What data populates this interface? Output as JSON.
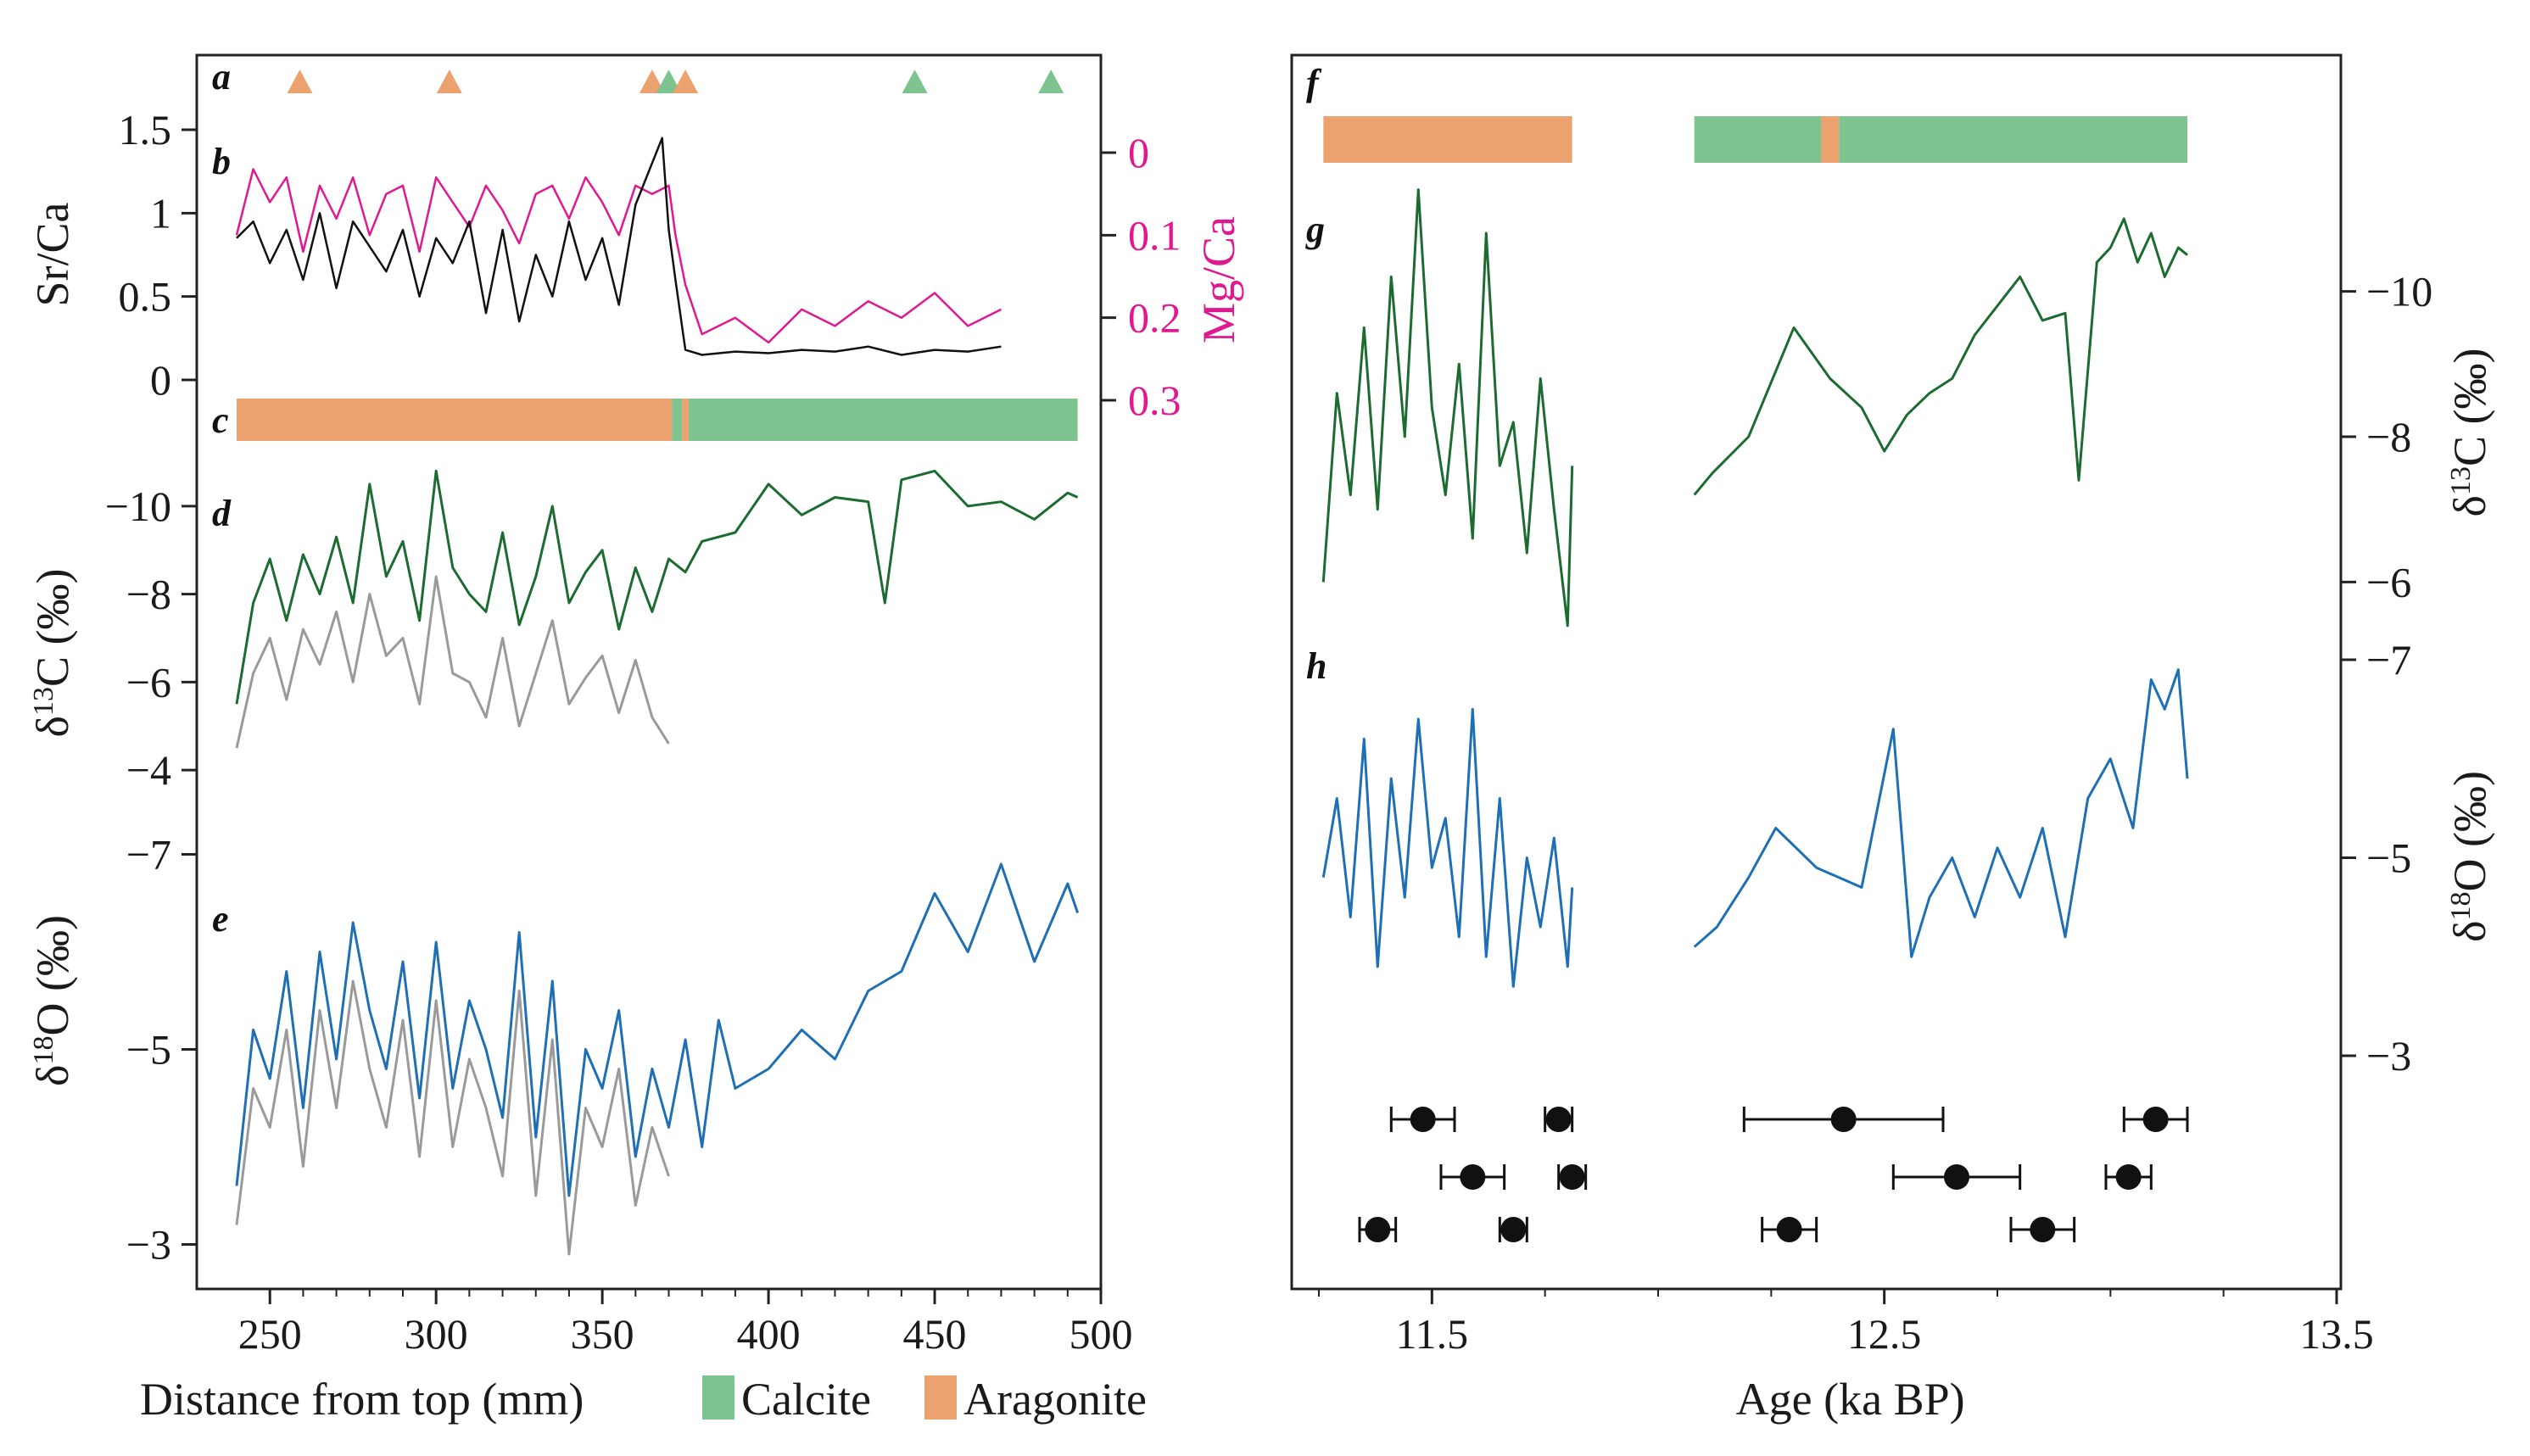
{
  "chart_data": [
    {
      "panel": "left",
      "type": "line",
      "xlabel": "Distance from top (mm)",
      "xlim": [
        228,
        500
      ],
      "xticks": [
        250,
        300,
        350,
        400,
        450,
        500
      ],
      "legend": {
        "placement": "bottom",
        "items": [
          {
            "label": "Calcite",
            "color": "#7dc491"
          },
          {
            "label": "Aragonite",
            "color": "#eba26f"
          }
        ]
      },
      "panel_labels": [
        "a",
        "b",
        "c",
        "d",
        "e"
      ],
      "a_markers": [
        {
          "x": 259,
          "mineral": "aragonite"
        },
        {
          "x": 304,
          "mineral": "aragonite"
        },
        {
          "x": 365,
          "mineral": "aragonite"
        },
        {
          "x": 370,
          "mineral": "calcite"
        },
        {
          "x": 375,
          "mineral": "aragonite"
        },
        {
          "x": 444,
          "mineral": "calcite"
        },
        {
          "x": 485,
          "mineral": "calcite"
        }
      ],
      "sr_ca": {
        "ylabel": "Sr/Ca",
        "ylim": [
          0,
          1.5
        ],
        "yticks": [
          0,
          0.5,
          1.0,
          1.5
        ],
        "color": "#111111",
        "x": [
          240,
          245,
          250,
          255,
          260,
          265,
          270,
          275,
          280,
          285,
          290,
          295,
          300,
          305,
          310,
          315,
          320,
          325,
          330,
          335,
          340,
          345,
          350,
          355,
          360,
          365,
          368,
          370,
          372,
          375,
          380,
          390,
          400,
          410,
          420,
          430,
          440,
          450,
          460,
          470
        ],
        "values": [
          0.85,
          0.95,
          0.7,
          0.9,
          0.6,
          1.0,
          0.55,
          0.95,
          0.8,
          0.65,
          0.9,
          0.5,
          0.85,
          0.7,
          0.95,
          0.4,
          0.9,
          0.35,
          0.75,
          0.5,
          0.95,
          0.6,
          0.85,
          0.45,
          1.05,
          1.3,
          1.45,
          0.9,
          0.6,
          0.18,
          0.15,
          0.17,
          0.16,
          0.18,
          0.17,
          0.2,
          0.15,
          0.18,
          0.17,
          0.2
        ]
      },
      "mg_ca": {
        "ylabel": "Mg/Ca",
        "ylim": [
          0,
          0.3
        ],
        "yticks": [
          0,
          0.1,
          0.2,
          0.3
        ],
        "inverted": true,
        "color": "#e0198f",
        "x": [
          240,
          245,
          250,
          255,
          260,
          265,
          270,
          275,
          280,
          285,
          290,
          295,
          300,
          305,
          310,
          315,
          320,
          325,
          330,
          335,
          340,
          345,
          350,
          355,
          360,
          365,
          370,
          372,
          375,
          380,
          390,
          400,
          410,
          420,
          430,
          440,
          450,
          460,
          470
        ],
        "values": [
          0.1,
          0.02,
          0.06,
          0.03,
          0.12,
          0.04,
          0.08,
          0.03,
          0.1,
          0.05,
          0.04,
          0.12,
          0.03,
          0.06,
          0.09,
          0.04,
          0.07,
          0.11,
          0.05,
          0.04,
          0.08,
          0.03,
          0.06,
          0.1,
          0.04,
          0.05,
          0.04,
          0.1,
          0.16,
          0.22,
          0.2,
          0.23,
          0.19,
          0.21,
          0.18,
          0.2,
          0.17,
          0.21,
          0.19
        ]
      },
      "mineralogy_bar": [
        {
          "from": 240,
          "to": 371,
          "mineral": "aragonite"
        },
        {
          "from": 371,
          "to": 374,
          "mineral": "calcite"
        },
        {
          "from": 374,
          "to": 376,
          "mineral": "aragonite"
        },
        {
          "from": 376,
          "to": 493,
          "mineral": "calcite"
        }
      ],
      "d13c": {
        "ylabel": "δ13C (‰)",
        "ylim": [
          -3,
          -11
        ],
        "yticks": [
          -10,
          -8,
          -6,
          -4
        ],
        "series": [
          {
            "color": "#1c6b30",
            "x": [
              240,
              245,
              250,
              255,
              260,
              265,
              270,
              275,
              280,
              285,
              290,
              295,
              300,
              305,
              310,
              315,
              320,
              325,
              330,
              335,
              340,
              345,
              350,
              355,
              360,
              365,
              370,
              375,
              380,
              390,
              400,
              410,
              420,
              430,
              435,
              440,
              450,
              460,
              470,
              480,
              490,
              493
            ],
            "values": [
              -5.5,
              -7.8,
              -8.8,
              -7.4,
              -8.9,
              -8.0,
              -9.3,
              -7.8,
              -10.5,
              -8.4,
              -9.2,
              -7.4,
              -10.8,
              -8.6,
              -8.0,
              -7.6,
              -9.4,
              -7.3,
              -8.4,
              -10.0,
              -7.8,
              -8.5,
              -9.0,
              -7.2,
              -8.6,
              -7.6,
              -8.8,
              -8.5,
              -9.2,
              -9.4,
              -10.5,
              -9.8,
              -10.2,
              -10.1,
              -7.8,
              -10.6,
              -10.8,
              -10.0,
              -10.1,
              -9.7,
              -10.3,
              -10.2
            ]
          },
          {
            "color": "#9a9a9a",
            "x": [
              240,
              245,
              250,
              255,
              260,
              265,
              270,
              275,
              280,
              285,
              290,
              295,
              300,
              305,
              310,
              315,
              320,
              325,
              330,
              335,
              340,
              345,
              350,
              355,
              360,
              365,
              370
            ],
            "values": [
              -4.5,
              -6.2,
              -7.0,
              -5.6,
              -7.2,
              -6.4,
              -7.6,
              -6.0,
              -8.0,
              -6.6,
              -7.0,
              -5.5,
              -8.4,
              -6.2,
              -6.0,
              -5.2,
              -7.0,
              -5.0,
              -6.2,
              -7.4,
              -5.5,
              -6.1,
              -6.6,
              -5.3,
              -6.5,
              -5.2,
              -4.6
            ]
          }
        ]
      },
      "d18o": {
        "ylabel": "δ18O (‰)",
        "ylim": [
          -2.5,
          -7.5
        ],
        "yticks": [
          -7,
          -5,
          -3
        ],
        "series": [
          {
            "color": "#1f6fb5",
            "x": [
              240,
              245,
              250,
              255,
              260,
              265,
              270,
              275,
              280,
              285,
              290,
              295,
              300,
              305,
              310,
              315,
              320,
              325,
              330,
              335,
              340,
              345,
              350,
              355,
              360,
              365,
              370,
              375,
              380,
              385,
              390,
              400,
              410,
              420,
              430,
              440,
              450,
              460,
              470,
              480,
              490,
              493
            ],
            "values": [
              -3.6,
              -5.2,
              -4.7,
              -5.8,
              -4.4,
              -6.0,
              -4.9,
              -6.3,
              -5.4,
              -4.8,
              -5.9,
              -4.5,
              -6.1,
              -4.6,
              -5.5,
              -5.0,
              -4.3,
              -6.2,
              -4.1,
              -5.7,
              -3.5,
              -5.0,
              -4.6,
              -5.4,
              -3.9,
              -4.8,
              -4.2,
              -5.1,
              -4.0,
              -5.3,
              -4.6,
              -4.8,
              -5.2,
              -4.9,
              -5.6,
              -5.8,
              -6.6,
              -6.0,
              -6.9,
              -5.9,
              -6.7,
              -6.4
            ]
          },
          {
            "color": "#9a9a9a",
            "x": [
              240,
              245,
              250,
              255,
              260,
              265,
              270,
              275,
              280,
              285,
              290,
              295,
              300,
              305,
              310,
              315,
              320,
              325,
              330,
              335,
              340,
              345,
              350,
              355,
              360,
              365,
              370
            ],
            "values": [
              -3.2,
              -4.6,
              -4.2,
              -5.2,
              -3.8,
              -5.4,
              -4.4,
              -5.7,
              -4.8,
              -4.2,
              -5.3,
              -3.9,
              -5.5,
              -4.0,
              -4.9,
              -4.4,
              -3.7,
              -5.6,
              -3.5,
              -5.1,
              -2.9,
              -4.4,
              -4.0,
              -4.8,
              -3.4,
              -4.2,
              -3.7
            ]
          }
        ]
      }
    },
    {
      "panel": "right",
      "type": "line",
      "xlabel": "Age (ka BP)",
      "xlim": [
        11.25,
        13.5
      ],
      "xticks": [
        11.5,
        12.5,
        13.5
      ],
      "panel_labels": [
        "f",
        "g",
        "h"
      ],
      "mineralogy_bar": [
        {
          "from": 11.26,
          "to": 11.81,
          "mineral": "aragonite"
        },
        {
          "from": 12.08,
          "to": 12.36,
          "mineral": "calcite"
        },
        {
          "from": 12.36,
          "to": 12.4,
          "mineral": "aragonite"
        },
        {
          "from": 12.4,
          "to": 13.17,
          "mineral": "calcite"
        }
      ],
      "d13c": {
        "ylabel": "δ13C (‰)",
        "ylim": [
          -4.5,
          -11.5
        ],
        "yticks": [
          -10,
          -8,
          -6
        ],
        "color": "#1c6b30",
        "x": [
          11.26,
          11.29,
          11.32,
          11.35,
          11.38,
          11.41,
          11.44,
          11.47,
          11.5,
          11.53,
          11.56,
          11.59,
          11.62,
          11.65,
          11.68,
          11.71,
          11.74,
          11.77,
          11.8,
          11.81,
          12.08,
          12.12,
          12.2,
          12.3,
          12.38,
          12.45,
          12.5,
          12.55,
          12.6,
          12.65,
          12.7,
          12.75,
          12.8,
          12.85,
          12.9,
          12.93,
          12.97,
          13.0,
          13.03,
          13.06,
          13.09,
          13.12,
          13.15,
          13.17
        ],
        "values": [
          -6.0,
          -8.6,
          -7.2,
          -9.5,
          -7.0,
          -10.2,
          -8.0,
          -11.4,
          -8.4,
          -7.2,
          -9.0,
          -6.6,
          -10.8,
          -7.6,
          -8.2,
          -6.4,
          -8.8,
          -7.0,
          -5.4,
          -7.6,
          -7.2,
          -7.5,
          -8.0,
          -9.5,
          -8.8,
          -8.4,
          -7.8,
          -8.3,
          -8.6,
          -8.8,
          -9.4,
          -9.8,
          -10.2,
          -9.6,
          -9.7,
          -7.4,
          -10.4,
          -10.6,
          -11.0,
          -10.4,
          -10.8,
          -10.2,
          -10.6,
          -10.5
        ]
      },
      "d18o": {
        "ylabel": "δ18O (‰)",
        "ylim": [
          -2.5,
          -7.5
        ],
        "yticks": [
          -7,
          -5,
          -3
        ],
        "color": "#1f6fb5",
        "x": [
          11.26,
          11.29,
          11.32,
          11.35,
          11.38,
          11.41,
          11.44,
          11.47,
          11.5,
          11.53,
          11.56,
          11.59,
          11.62,
          11.65,
          11.68,
          11.71,
          11.74,
          11.77,
          11.8,
          11.81,
          12.08,
          12.13,
          12.2,
          12.26,
          12.35,
          12.45,
          12.52,
          12.56,
          12.6,
          12.65,
          12.7,
          12.75,
          12.8,
          12.85,
          12.9,
          12.95,
          13.0,
          13.05,
          13.09,
          13.12,
          13.15,
          13.17
        ],
        "values": [
          -4.8,
          -5.6,
          -4.4,
          -6.2,
          -3.9,
          -5.8,
          -4.6,
          -6.4,
          -4.9,
          -5.4,
          -4.2,
          -6.5,
          -4.0,
          -5.6,
          -3.7,
          -5.0,
          -4.3,
          -5.2,
          -3.9,
          -4.7,
          -4.1,
          -4.3,
          -4.8,
          -5.3,
          -4.9,
          -4.7,
          -6.3,
          -4.0,
          -4.6,
          -5.0,
          -4.4,
          -5.1,
          -4.6,
          -5.3,
          -4.2,
          -5.6,
          -6.0,
          -5.3,
          -6.8,
          -6.5,
          -6.9,
          -5.8
        ]
      },
      "age_dates": [
        {
          "age": 11.48,
          "err": 0.07,
          "row": 0
        },
        {
          "age": 11.78,
          "err": 0.03,
          "row": 0
        },
        {
          "age": 12.41,
          "err": 0.22,
          "row": 0
        },
        {
          "age": 13.1,
          "err": 0.07,
          "row": 0
        },
        {
          "age": 11.59,
          "err": 0.07,
          "row": 1
        },
        {
          "age": 11.81,
          "err": 0.03,
          "row": 1
        },
        {
          "age": 12.66,
          "err": 0.14,
          "row": 1
        },
        {
          "age": 13.04,
          "err": 0.05,
          "row": 1
        },
        {
          "age": 11.38,
          "err": 0.04,
          "row": 2
        },
        {
          "age": 11.68,
          "err": 0.03,
          "row": 2
        },
        {
          "age": 12.29,
          "err": 0.06,
          "row": 2
        },
        {
          "age": 12.85,
          "err": 0.07,
          "row": 2
        }
      ]
    }
  ]
}
